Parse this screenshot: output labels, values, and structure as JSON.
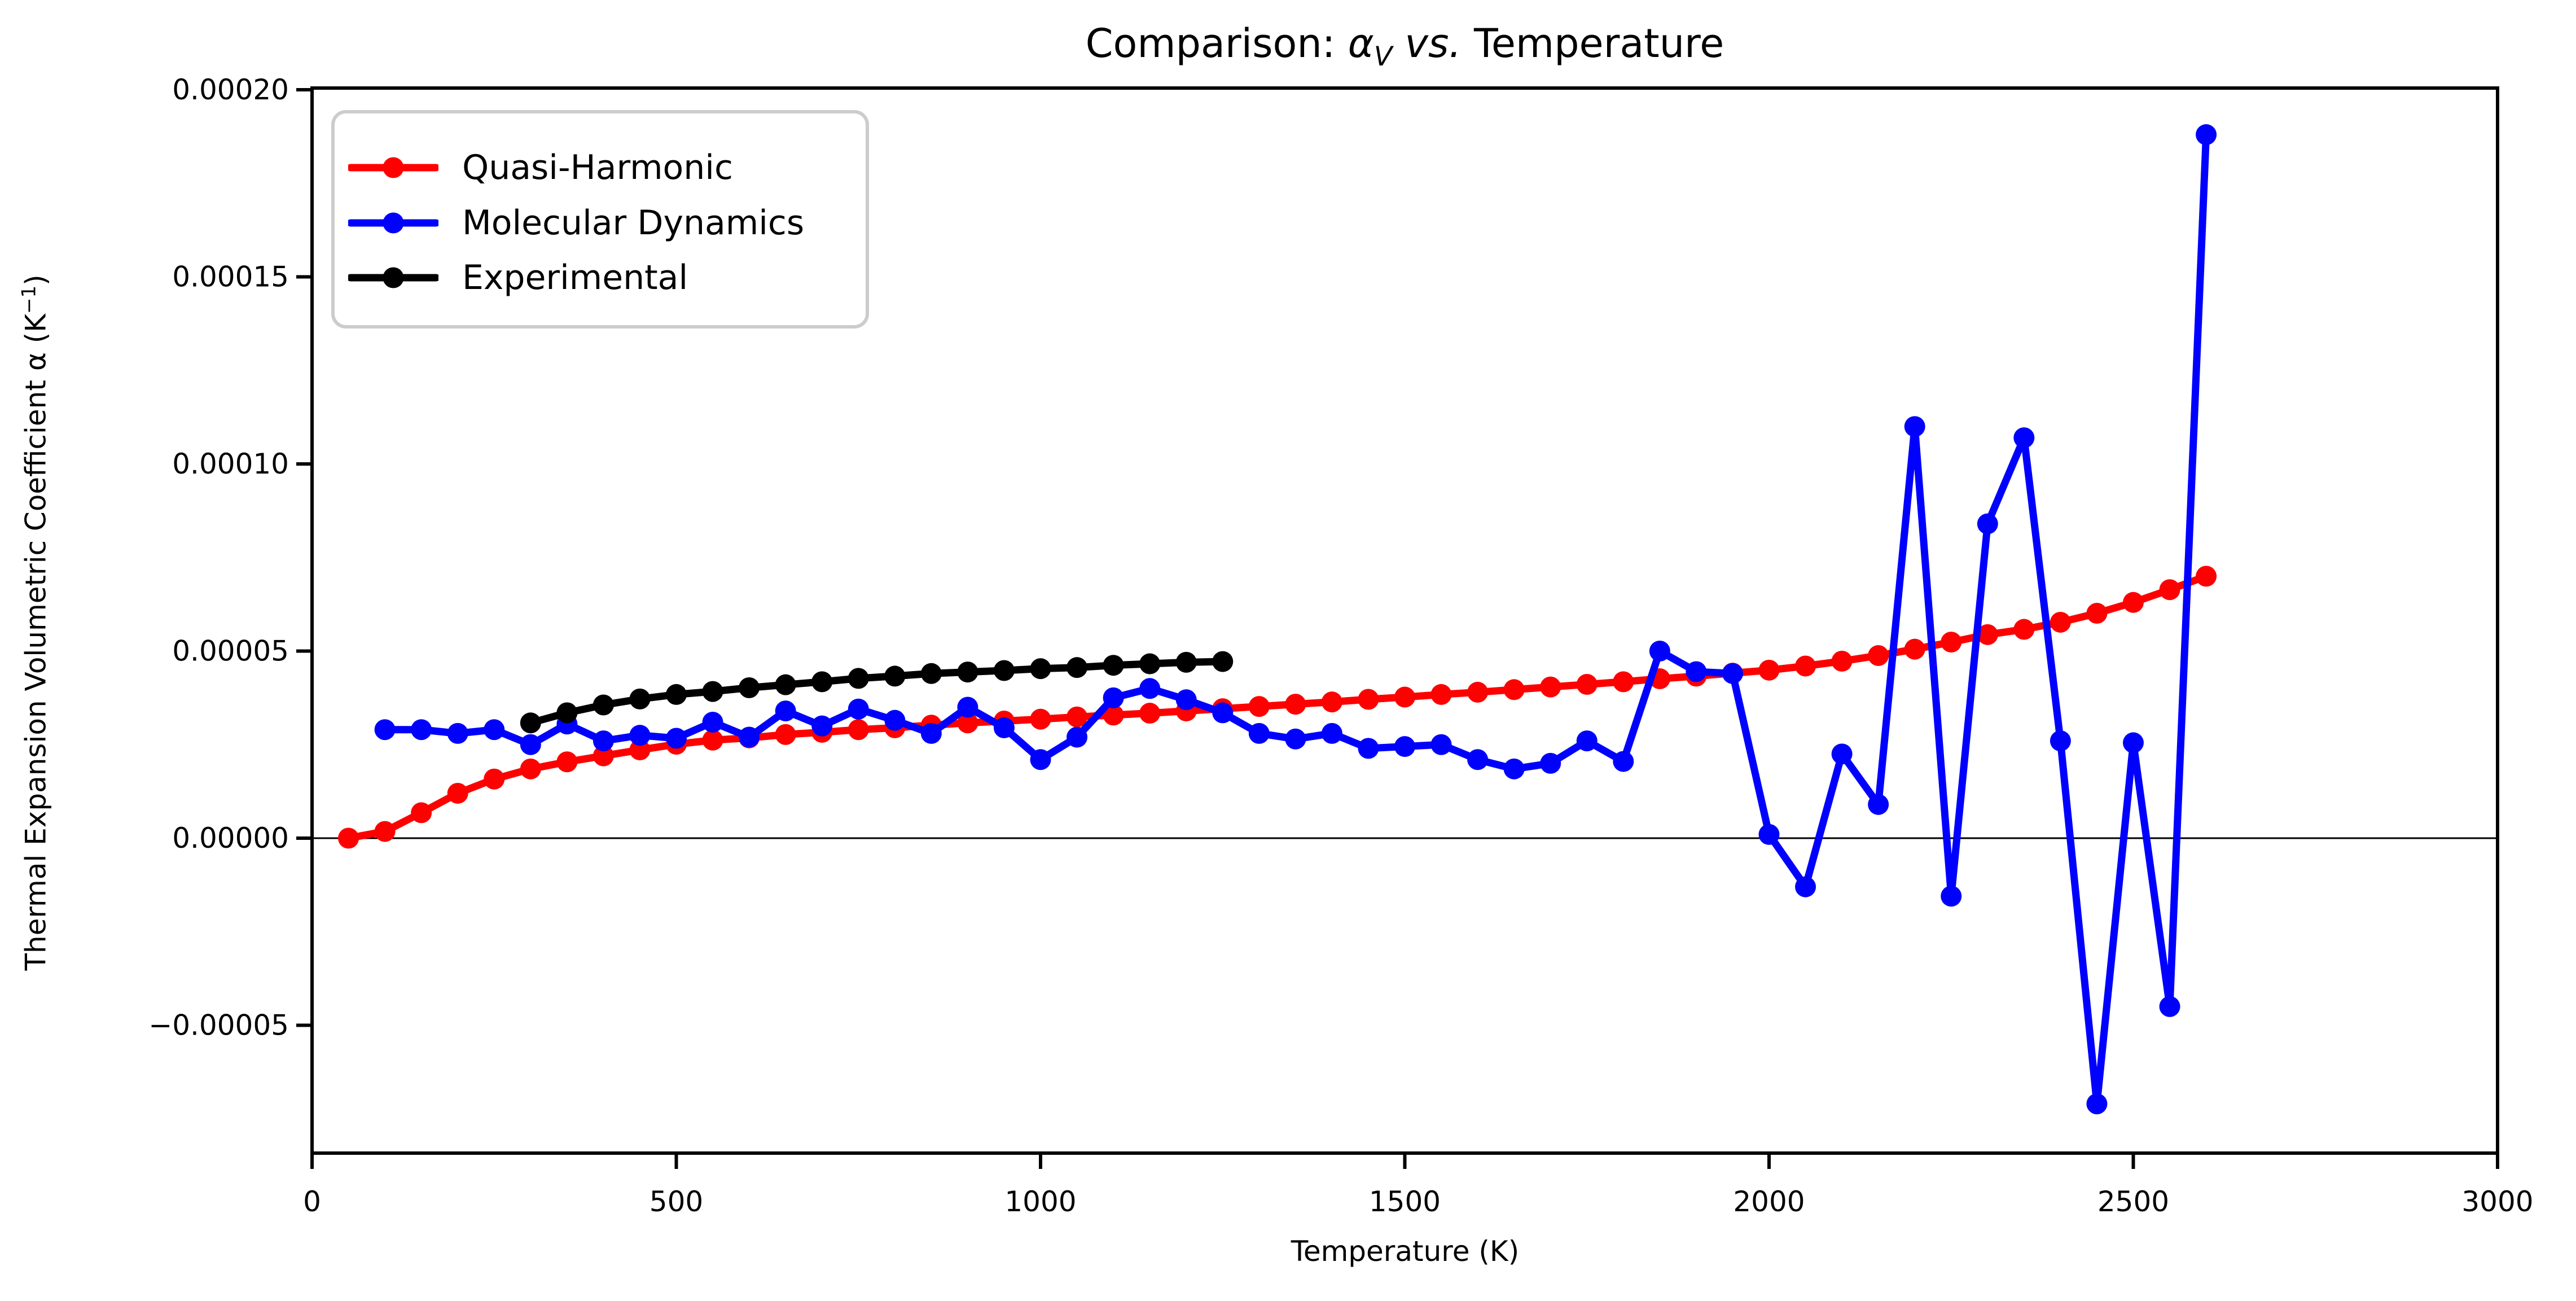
{
  "title": {
    "prefix": "Comparison: ",
    "alpha": "α",
    "alpha_sub": "V",
    "vs": " vs. ",
    "suffix": " Temperature"
  },
  "x_axis": {
    "label": "Temperature (K)",
    "tick_labels": [
      "0",
      "500",
      "1000",
      "1500",
      "2000",
      "2500",
      "3000"
    ],
    "tick_values": [
      0,
      500,
      1000,
      1500,
      2000,
      2500,
      3000
    ]
  },
  "y_axis": {
    "label_main": "Thermal Expansion Volumetric Coefficient α (K",
    "label_sup": "−1",
    "label_close": ")",
    "tick_labels": [
      "0.00020",
      "0.00015",
      "0.00010",
      "0.00005",
      "0.00000",
      "−0.00005"
    ],
    "tick_values_e5": [
      20,
      15,
      10,
      5,
      0,
      -5
    ]
  },
  "legend": {
    "items": [
      {
        "label": "Quasi-Harmonic",
        "color": "#ff0000"
      },
      {
        "label": "Molecular Dynamics",
        "color": "#0000ff"
      },
      {
        "label": "Experimental",
        "color": "#000000"
      }
    ]
  },
  "colors": {
    "background": "#ffffff",
    "frame": "#000000",
    "zero_line": "#000000",
    "legend_border": "#cccccc"
  },
  "chart_data": {
    "type": "line",
    "title": "Comparison: α_V vs. Temperature",
    "xlabel": "Temperature (K)",
    "ylabel": "Thermal Expansion Volumetric Coefficient α (K⁻¹)",
    "xlim": [
      0,
      3000
    ],
    "ylim": [
      -8.42e-05,
      0.0002005
    ],
    "grid": false,
    "zero_line": true,
    "legend_position": "upper left",
    "y_value_scale": 1e-05,
    "y_unit_note": "series y values are in units of 1e-5 K^-1",
    "series": [
      {
        "name": "Quasi-Harmonic",
        "color": "#ff0000",
        "marker": "o",
        "x": [
          50,
          100,
          150,
          200,
          250,
          300,
          350,
          400,
          450,
          500,
          550,
          600,
          650,
          700,
          750,
          800,
          850,
          900,
          950,
          1000,
          1050,
          1100,
          1150,
          1200,
          1250,
          1300,
          1350,
          1400,
          1450,
          1500,
          1550,
          1600,
          1650,
          1700,
          1750,
          1800,
          1850,
          1900,
          1950,
          2000,
          2050,
          2100,
          2150,
          2200,
          2250,
          2300,
          2350,
          2400,
          2450,
          2500,
          2550,
          2600
        ],
        "y_e5": [
          0.0,
          0.18,
          0.68,
          1.2,
          1.58,
          1.85,
          2.04,
          2.2,
          2.36,
          2.51,
          2.62,
          2.68,
          2.77,
          2.83,
          2.9,
          2.95,
          3.02,
          3.08,
          3.13,
          3.18,
          3.24,
          3.29,
          3.34,
          3.4,
          3.46,
          3.52,
          3.58,
          3.64,
          3.71,
          3.77,
          3.84,
          3.9,
          3.97,
          4.04,
          4.11,
          4.18,
          4.26,
          4.33,
          4.41,
          4.49,
          4.6,
          4.73,
          4.88,
          5.05,
          5.24,
          5.44,
          5.58,
          5.77,
          6.01,
          6.3,
          6.64,
          7.0
        ]
      },
      {
        "name": "Molecular Dynamics",
        "color": "#0000ff",
        "marker": "o",
        "x": [
          100,
          150,
          200,
          250,
          300,
          350,
          400,
          450,
          500,
          550,
          600,
          650,
          700,
          750,
          800,
          850,
          900,
          950,
          1000,
          1050,
          1100,
          1150,
          1200,
          1250,
          1300,
          1350,
          1400,
          1450,
          1500,
          1550,
          1600,
          1650,
          1700,
          1750,
          1800,
          1850,
          1900,
          1950,
          2000,
          2050,
          2100,
          2150,
          2200,
          2250,
          2300,
          2350,
          2400,
          2450,
          2500,
          2550,
          2600
        ],
        "y_e5": [
          2.9,
          2.9,
          2.8,
          2.9,
          2.5,
          3.05,
          2.6,
          2.75,
          2.67,
          3.1,
          2.7,
          3.4,
          3.0,
          3.45,
          3.15,
          2.8,
          3.5,
          2.95,
          2.1,
          2.7,
          3.75,
          4.0,
          3.7,
          3.35,
          2.8,
          2.65,
          2.8,
          2.4,
          2.45,
          2.5,
          2.1,
          1.85,
          2.0,
          2.6,
          2.05,
          5.0,
          4.45,
          4.4,
          0.1,
          -1.3,
          2.25,
          0.9,
          11.0,
          -1.55,
          8.4,
          10.7,
          2.6,
          -7.1,
          2.55,
          -4.5,
          18.8
        ]
      },
      {
        "name": "Experimental",
        "color": "#000000",
        "marker": "o",
        "x": [
          300,
          350,
          400,
          450,
          500,
          550,
          600,
          650,
          700,
          750,
          800,
          850,
          900,
          950,
          1000,
          1050,
          1100,
          1150,
          1200,
          1250
        ],
        "y_e5": [
          3.08,
          3.35,
          3.56,
          3.72,
          3.84,
          3.92,
          4.02,
          4.1,
          4.18,
          4.27,
          4.33,
          4.4,
          4.44,
          4.48,
          4.53,
          4.56,
          4.62,
          4.66,
          4.7,
          4.72
        ]
      }
    ]
  }
}
